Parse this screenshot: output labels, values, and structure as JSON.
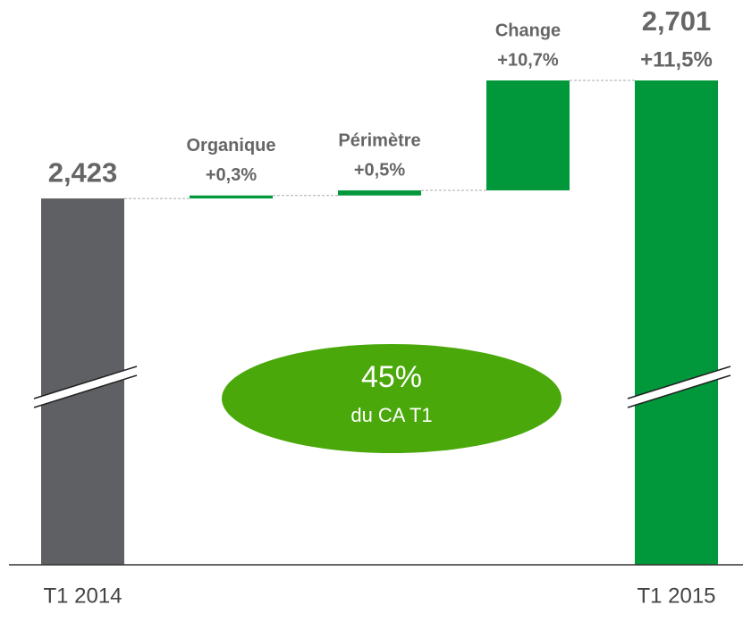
{
  "chart_data": {
    "type": "waterfall",
    "categories": [
      "T1 2014",
      "Organique",
      "Périmètre",
      "Change",
      "T1 2015"
    ],
    "values": [
      2.423,
      0.007,
      0.012,
      0.259,
      2.701
    ],
    "value_labels": [
      "2,423",
      null,
      null,
      null,
      "2,701"
    ],
    "changes": [
      "+0,3%",
      "+0,5%",
      "+10,7%",
      "+11,5%"
    ],
    "colors": [
      "#5f6064",
      "#00983a",
      "#00983a",
      "#00983a",
      "#00983a"
    ],
    "ylim": [
      1.56,
      2.78
    ],
    "annotation": {
      "value": "45%",
      "text": "du CA T1"
    }
  }
}
